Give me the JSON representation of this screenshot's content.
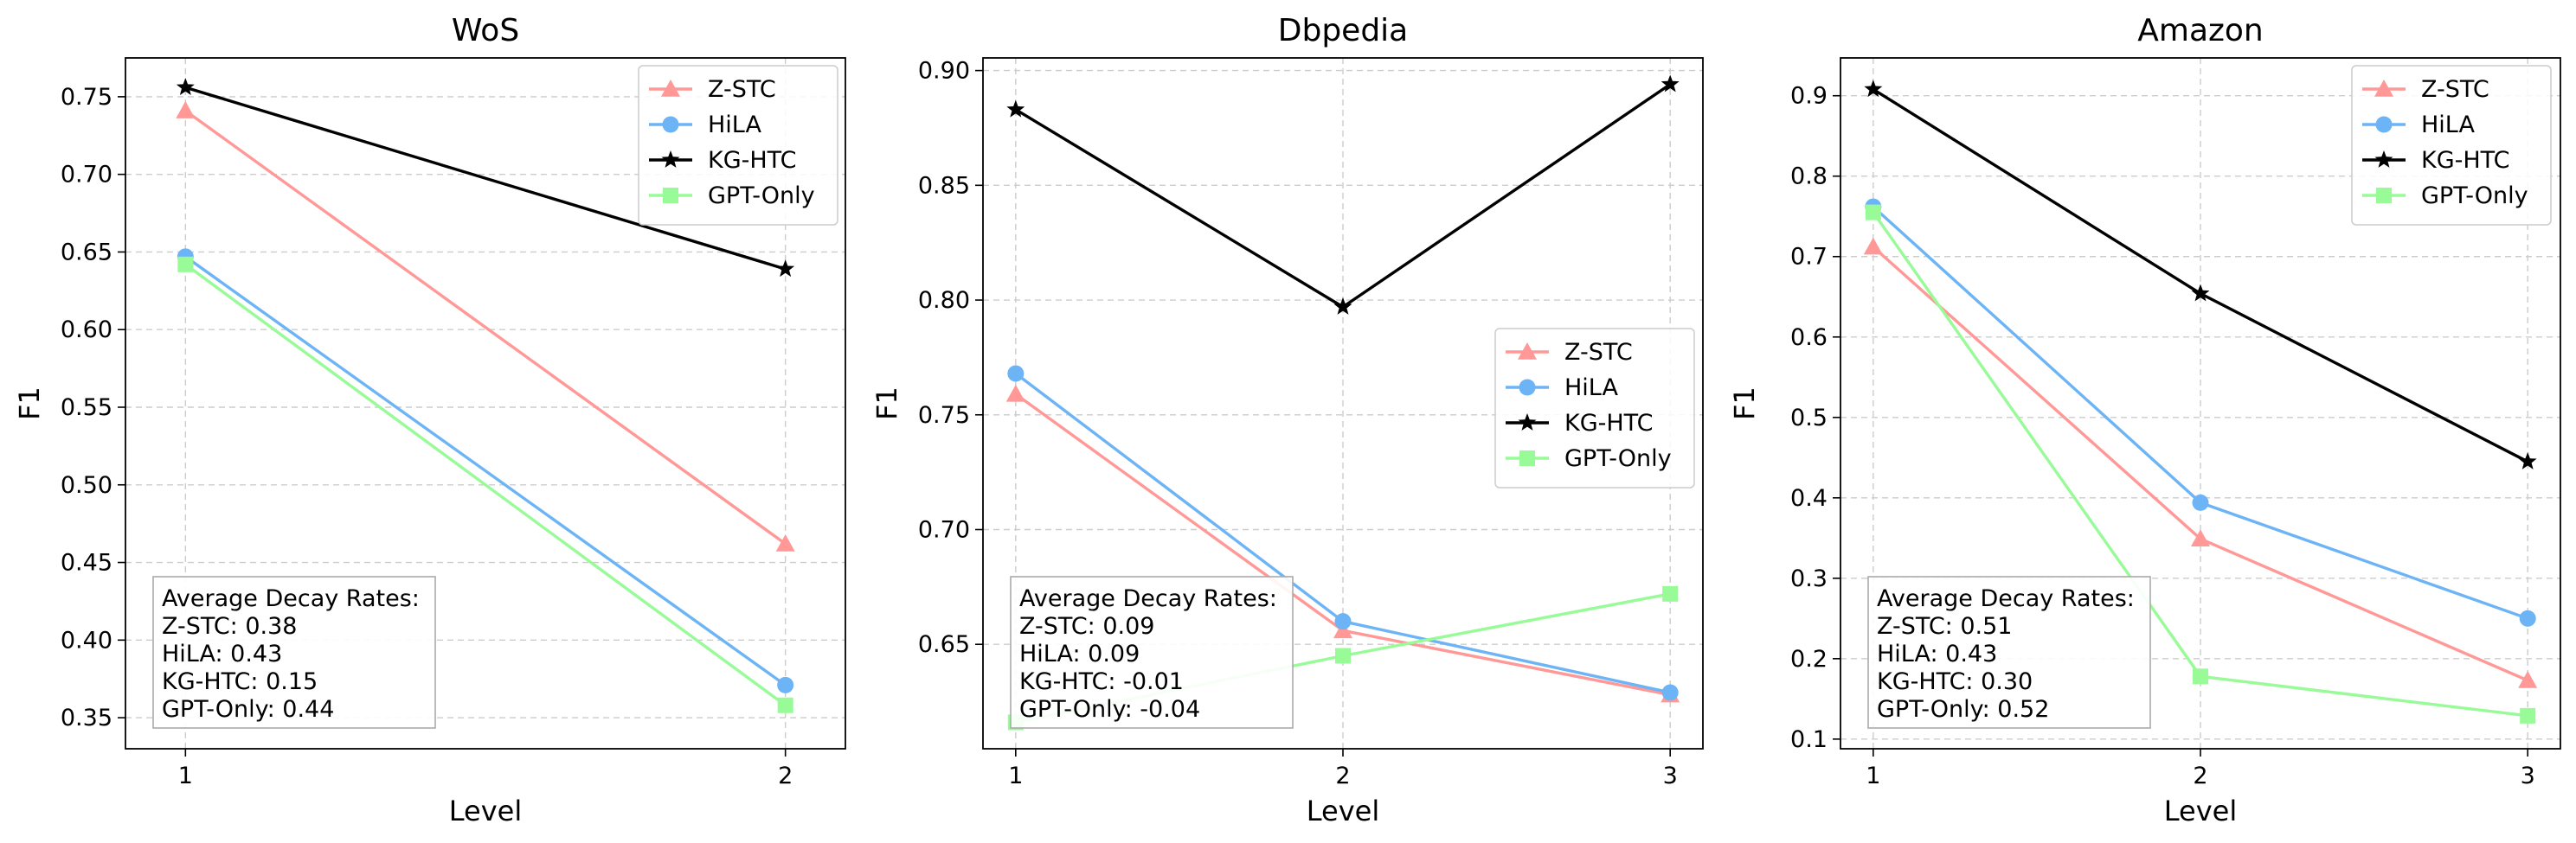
{
  "charts": [
    {
      "title": "WoS",
      "xlabel": "Level",
      "ylabel": "F1",
      "xlim": [
        0.9,
        2.1
      ],
      "ylim": [
        0.33,
        0.775
      ],
      "xticks": [
        1,
        2
      ],
      "yticks": [
        0.35,
        0.4,
        0.45,
        0.5,
        0.55,
        0.6,
        0.65,
        0.7,
        0.75
      ],
      "ytick_decimals": 2,
      "legend_pos": "top-right",
      "stats_title": "Average Decay Rates:",
      "stats_lines": [
        "Z-STC: 0.38",
        "HiLA: 0.43",
        "KG-HTC: 0.15",
        "GPT-Only: 0.44"
      ]
    },
    {
      "title": "Dbpedia",
      "xlabel": "Level",
      "ylabel": "F1",
      "xlim": [
        0.9,
        3.1
      ],
      "ylim": [
        0.6045,
        0.9055
      ],
      "xticks": [
        1,
        2,
        3
      ],
      "yticks": [
        0.65,
        0.7,
        0.75,
        0.8,
        0.85,
        0.9
      ],
      "ytick_decimals": 2,
      "legend_pos": "center-right",
      "stats_title": "Average Decay Rates:",
      "stats_lines": [
        "Z-STC: 0.09",
        "HiLA: 0.09",
        "KG-HTC: -0.01",
        "GPT-Only: -0.04"
      ]
    },
    {
      "title": "Amazon",
      "xlabel": "Level",
      "ylabel": "F1",
      "xlim": [
        0.9,
        3.1
      ],
      "ylim": [
        0.088,
        0.947
      ],
      "xticks": [
        1,
        2,
        3
      ],
      "yticks": [
        0.1,
        0.2,
        0.3,
        0.4,
        0.5,
        0.6,
        0.7,
        0.8,
        0.9
      ],
      "ytick_decimals": 1,
      "legend_pos": "top-right",
      "stats_title": "Average Decay Rates:",
      "stats_lines": [
        "Z-STC: 0.51",
        "HiLA: 0.43",
        "KG-HTC: 0.30",
        "GPT-Only: 0.52"
      ]
    }
  ],
  "chart_data": [
    {
      "type": "line",
      "title": "WoS",
      "xlabel": "Level",
      "ylabel": "F1",
      "x": [
        1,
        2
      ],
      "series": [
        {
          "name": "Z-STC",
          "color": "#ff9896",
          "marker": "triangle",
          "values": [
            0.741,
            0.462
          ]
        },
        {
          "name": "HiLA",
          "color": "#6cb4f5",
          "marker": "circle",
          "values": [
            0.647,
            0.371
          ]
        },
        {
          "name": "KG-HTC",
          "color": "#000000",
          "marker": "star",
          "values": [
            0.756,
            0.639
          ]
        },
        {
          "name": "GPT-Only",
          "color": "#98fb98",
          "marker": "square",
          "values": [
            0.642,
            0.358
          ]
        }
      ]
    },
    {
      "type": "line",
      "title": "Dbpedia",
      "xlabel": "Level",
      "ylabel": "F1",
      "x": [
        1,
        2,
        3
      ],
      "series": [
        {
          "name": "Z-STC",
          "color": "#ff9896",
          "marker": "triangle",
          "values": [
            0.759,
            0.656,
            0.628
          ]
        },
        {
          "name": "HiLA",
          "color": "#6cb4f5",
          "marker": "circle",
          "values": [
            0.768,
            0.66,
            0.629
          ]
        },
        {
          "name": "KG-HTC",
          "color": "#000000",
          "marker": "star",
          "values": [
            0.883,
            0.797,
            0.894
          ]
        },
        {
          "name": "GPT-Only",
          "color": "#98fb98",
          "marker": "square",
          "values": [
            0.616,
            0.645,
            0.672
          ]
        }
      ]
    },
    {
      "type": "line",
      "title": "Amazon",
      "xlabel": "Level",
      "ylabel": "F1",
      "x": [
        1,
        2,
        3
      ],
      "series": [
        {
          "name": "Z-STC",
          "color": "#ff9896",
          "marker": "triangle",
          "values": [
            0.712,
            0.349,
            0.173
          ]
        },
        {
          "name": "HiLA",
          "color": "#6cb4f5",
          "marker": "circle",
          "values": [
            0.762,
            0.394,
            0.25
          ]
        },
        {
          "name": "KG-HTC",
          "color": "#000000",
          "marker": "star",
          "values": [
            0.908,
            0.654,
            0.445
          ]
        },
        {
          "name": "GPT-Only",
          "color": "#98fb98",
          "marker": "square",
          "values": [
            0.755,
            0.178,
            0.129
          ]
        }
      ]
    }
  ]
}
